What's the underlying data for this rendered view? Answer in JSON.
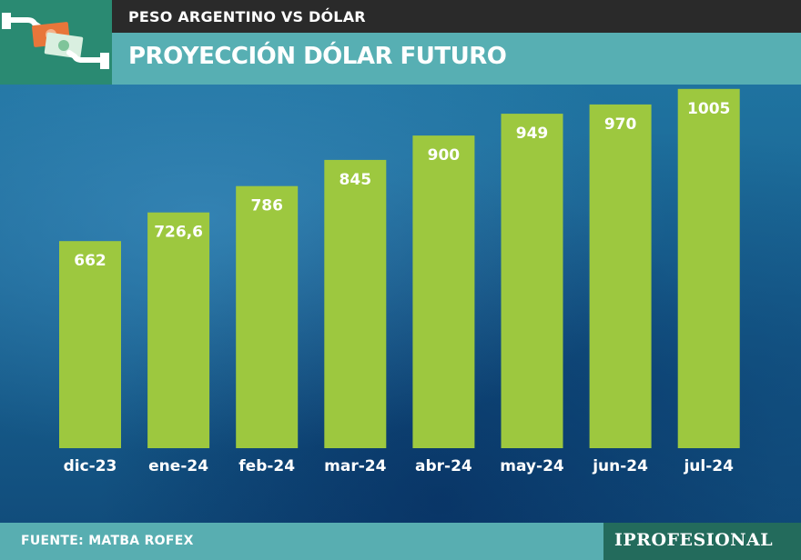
{
  "header": {
    "subtitle": "PESO ARGENTINO VS DÓLAR",
    "title": "PROYECCIÓN DÓLAR FUTURO",
    "icon": "money-exchange-icon"
  },
  "chart_data": {
    "type": "bar",
    "categories": [
      "dic-23",
      "ene-24",
      "feb-24",
      "mar-24",
      "abr-24",
      "may-24",
      "jun-24",
      "jul-24"
    ],
    "values": [
      662,
      726.6,
      786,
      845,
      900,
      949,
      970,
      1005
    ],
    "value_labels": [
      "662",
      "726,6",
      "786",
      "845",
      "900",
      "949",
      "970",
      "1005"
    ],
    "grid": false,
    "legend": "none",
    "bar_color": "#9dc83f"
  },
  "footer": {
    "source": "FUENTE: MATBA ROFEX",
    "brand": "IPROFESIONAL"
  }
}
